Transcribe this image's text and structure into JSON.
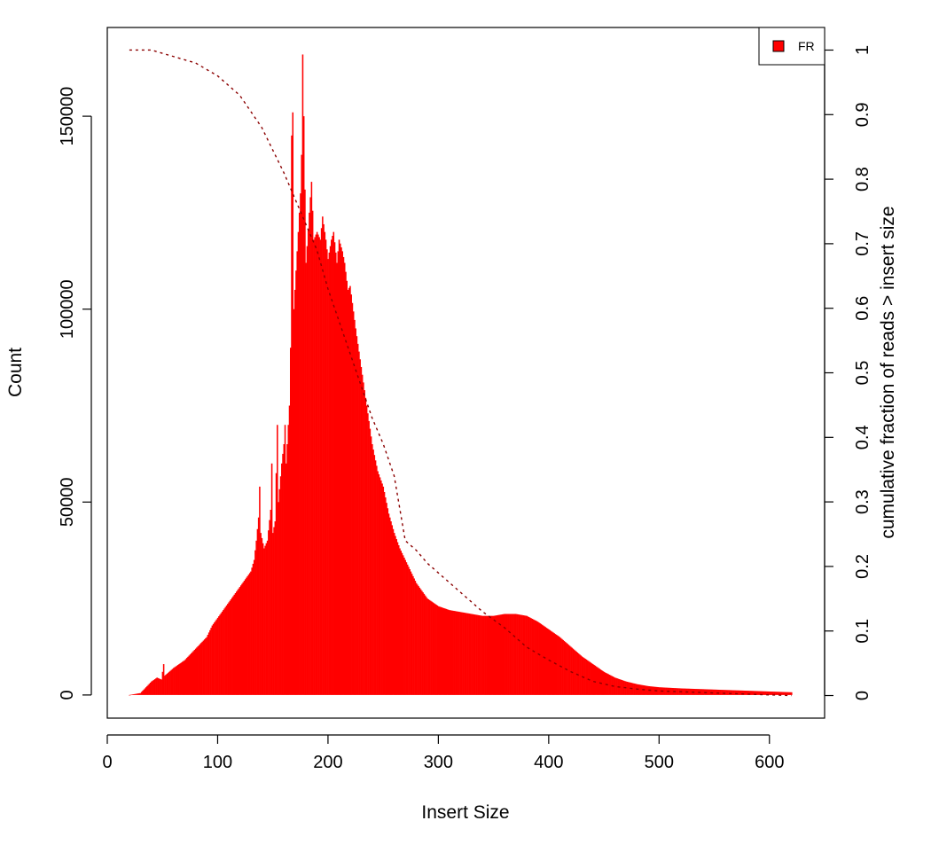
{
  "chart_data": {
    "type": "bar",
    "title": "",
    "xlabel": "Insert Size",
    "ylabel": "Count",
    "y2label": "cumulative fraction of reads > insert size",
    "xlim": [
      0,
      650
    ],
    "ylim": [
      -6000,
      173000
    ],
    "y2lim": [
      -0.035,
      1.035
    ],
    "x_ticks": [
      "0",
      "100",
      "200",
      "300",
      "400",
      "500",
      "600"
    ],
    "y_ticks": [
      "0",
      "50000",
      "100000",
      "150000"
    ],
    "y2_ticks": [
      "0",
      "0.1",
      "0.2",
      "0.3",
      "0.4",
      "0.5",
      "0.6",
      "0.7",
      "0.8",
      "0.9",
      "1"
    ],
    "legend": {
      "position": "top-right",
      "entries": [
        "FR"
      ]
    },
    "colors": {
      "bars": "#ff0000",
      "bar_edge": "#e00000",
      "cumulative": "#8b0000"
    },
    "histogram_points": [
      [
        20,
        0
      ],
      [
        30,
        500
      ],
      [
        35,
        2000
      ],
      [
        40,
        3500
      ],
      [
        45,
        4500
      ],
      [
        49,
        4000
      ],
      [
        51,
        8000
      ],
      [
        52,
        5000
      ],
      [
        60,
        7000
      ],
      [
        70,
        9000
      ],
      [
        80,
        12000
      ],
      [
        90,
        15000
      ],
      [
        95,
        18000
      ],
      [
        100,
        20000
      ],
      [
        105,
        22000
      ],
      [
        110,
        24000
      ],
      [
        115,
        26000
      ],
      [
        120,
        28000
      ],
      [
        125,
        30000
      ],
      [
        130,
        32000
      ],
      [
        133,
        35000
      ],
      [
        135,
        40000
      ],
      [
        137,
        46000
      ],
      [
        138,
        54000
      ],
      [
        139,
        42000
      ],
      [
        142,
        38000
      ],
      [
        145,
        40000
      ],
      [
        148,
        48000
      ],
      [
        149,
        60000
      ],
      [
        150,
        42000
      ],
      [
        152,
        45000
      ],
      [
        154,
        70000
      ],
      [
        155,
        50000
      ],
      [
        158,
        60000
      ],
      [
        160,
        65000
      ],
      [
        161,
        70000
      ],
      [
        162,
        60000
      ],
      [
        165,
        75000
      ],
      [
        166,
        90000
      ],
      [
        167,
        145000
      ],
      [
        168,
        151000
      ],
      [
        169,
        100000
      ],
      [
        171,
        110000
      ],
      [
        173,
        120000
      ],
      [
        175,
        130000
      ],
      [
        176,
        140000
      ],
      [
        177,
        166000
      ],
      [
        178,
        150000
      ],
      [
        180,
        112000
      ],
      [
        183,
        125000
      ],
      [
        185,
        133000
      ],
      [
        187,
        118000
      ],
      [
        190,
        120000
      ],
      [
        193,
        118000
      ],
      [
        195,
        124000
      ],
      [
        198,
        118000
      ],
      [
        200,
        113000
      ],
      [
        203,
        118000
      ],
      [
        205,
        120000
      ],
      [
        208,
        112000
      ],
      [
        210,
        118000
      ],
      [
        213,
        115000
      ],
      [
        215,
        112000
      ],
      [
        218,
        105000
      ],
      [
        220,
        106000
      ],
      [
        225,
        95000
      ],
      [
        230,
        85000
      ],
      [
        235,
        75000
      ],
      [
        240,
        65000
      ],
      [
        245,
        58000
      ],
      [
        250,
        54000
      ],
      [
        255,
        47000
      ],
      [
        260,
        42000
      ],
      [
        265,
        38000
      ],
      [
        270,
        35000
      ],
      [
        275,
        32000
      ],
      [
        280,
        29000
      ],
      [
        285,
        27000
      ],
      [
        290,
        25000
      ],
      [
        295,
        24000
      ],
      [
        300,
        23000
      ],
      [
        310,
        22000
      ],
      [
        320,
        21500
      ],
      [
        330,
        21000
      ],
      [
        340,
        20500
      ],
      [
        350,
        20500
      ],
      [
        360,
        21000
      ],
      [
        370,
        21000
      ],
      [
        380,
        20500
      ],
      [
        390,
        19000
      ],
      [
        400,
        17000
      ],
      [
        410,
        15000
      ],
      [
        420,
        12500
      ],
      [
        430,
        10000
      ],
      [
        440,
        8000
      ],
      [
        450,
        6000
      ],
      [
        460,
        4500
      ],
      [
        470,
        3500
      ],
      [
        480,
        2800
      ],
      [
        490,
        2300
      ],
      [
        500,
        2000
      ],
      [
        520,
        1700
      ],
      [
        540,
        1500
      ],
      [
        560,
        1300
      ],
      [
        580,
        1100
      ],
      [
        600,
        900
      ],
      [
        620,
        700
      ]
    ],
    "cumulative_points": [
      [
        20,
        1.0
      ],
      [
        40,
        1.0
      ],
      [
        60,
        0.99
      ],
      [
        80,
        0.98
      ],
      [
        100,
        0.96
      ],
      [
        120,
        0.93
      ],
      [
        140,
        0.88
      ],
      [
        160,
        0.81
      ],
      [
        170,
        0.77
      ],
      [
        180,
        0.73
      ],
      [
        190,
        0.69
      ],
      [
        200,
        0.63
      ],
      [
        210,
        0.58
      ],
      [
        220,
        0.53
      ],
      [
        230,
        0.48
      ],
      [
        240,
        0.43
      ],
      [
        250,
        0.39
      ],
      [
        260,
        0.34
      ],
      [
        270,
        0.24
      ],
      [
        280,
        0.225
      ],
      [
        290,
        0.205
      ],
      [
        300,
        0.19
      ],
      [
        320,
        0.16
      ],
      [
        340,
        0.13
      ],
      [
        360,
        0.105
      ],
      [
        380,
        0.075
      ],
      [
        400,
        0.055
      ],
      [
        420,
        0.037
      ],
      [
        440,
        0.022
      ],
      [
        460,
        0.014
      ],
      [
        480,
        0.01
      ],
      [
        500,
        0.007
      ],
      [
        550,
        0.004
      ],
      [
        600,
        0.001
      ],
      [
        620,
        0.0
      ]
    ]
  }
}
